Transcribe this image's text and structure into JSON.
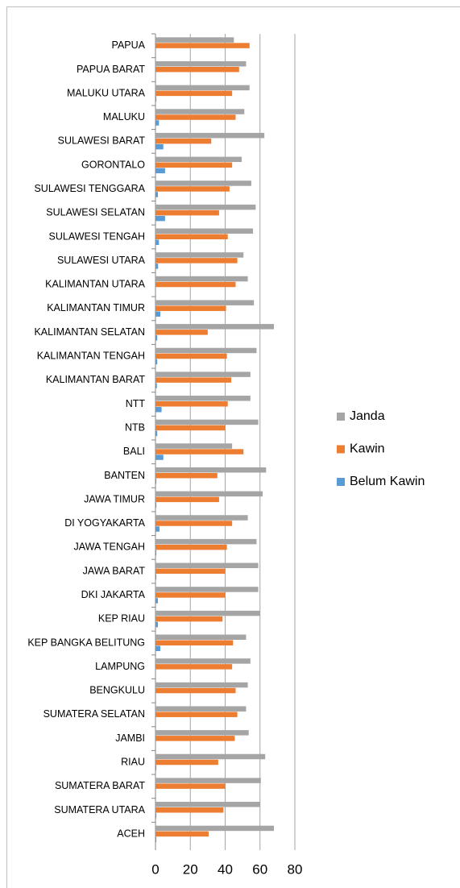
{
  "chart_data": {
    "type": "bar",
    "orientation": "horizontal",
    "categories": [
      "PAPUA",
      "PAPUA BARAT",
      "MALUKU UTARA",
      "MALUKU",
      "SULAWESI BARAT",
      "GORONTALO",
      "SULAWESI TENGGARA",
      "SULAWESI SELATAN",
      "SULAWESI TENGAH",
      "SULAWESI UTARA",
      "KALIMANTAN UTARA",
      "KALIMANTAN TIMUR",
      "KALIMANTAN SELATAN",
      "KALIMANTAN TENGAH",
      "KALIMANTAN BARAT",
      "NTT",
      "NTB",
      "BALI",
      "BANTEN",
      "JAWA TIMUR",
      "DI YOGYAKARTA",
      "JAWA TENGAH",
      "JAWA BARAT",
      "DKI JAKARTA",
      "KEP RIAU",
      "KEP BANGKA BELITUNG",
      "LAMPUNG",
      "BENGKULU",
      "SUMATERA SELATAN",
      "JAMBI",
      "RIAU",
      "SUMATERA BARAT",
      "SUMATERA UTARA",
      "ACEH"
    ],
    "series": [
      {
        "name": "Janda",
        "color": "#a5a5a5",
        "values": [
          45,
          52,
          54,
          51,
          62.5,
          49.5,
          55,
          57.5,
          56,
          50.5,
          53,
          56.5,
          68,
          58,
          54.5,
          54.5,
          59,
          44,
          63.5,
          61.5,
          53,
          58,
          59,
          59,
          60,
          52,
          54.5,
          53,
          52,
          53.5,
          63,
          60.5,
          60,
          68
        ]
      },
      {
        "name": "Kawin",
        "color": "#ed7d31",
        "values": [
          54,
          48,
          44,
          46,
          32,
          44,
          42.5,
          36.5,
          41.5,
          47,
          46,
          40.5,
          30,
          41,
          43.5,
          41.5,
          40,
          50.5,
          35.5,
          36.5,
          44,
          41,
          40,
          40,
          38.5,
          44.5,
          44,
          46,
          47,
          45.5,
          36,
          40,
          39,
          30.5
        ]
      },
      {
        "name": "Belum Kawin",
        "color": "#5b9bd5",
        "values": [
          0,
          0,
          0.5,
          2,
          4.5,
          5.5,
          1.4,
          5.5,
          2,
          1.5,
          0,
          2.8,
          1,
          1,
          0.8,
          3.5,
          1,
          4.5,
          0.5,
          0.5,
          2.3,
          0.5,
          0.5,
          1.4,
          1.4,
          2.8,
          0,
          0,
          0,
          0,
          0.5,
          0,
          0.5,
          0.5
        ]
      }
    ],
    "xlim": [
      0,
      80
    ],
    "xticks": [
      0,
      20,
      40,
      60,
      80
    ],
    "grid": true,
    "legend": "right"
  }
}
